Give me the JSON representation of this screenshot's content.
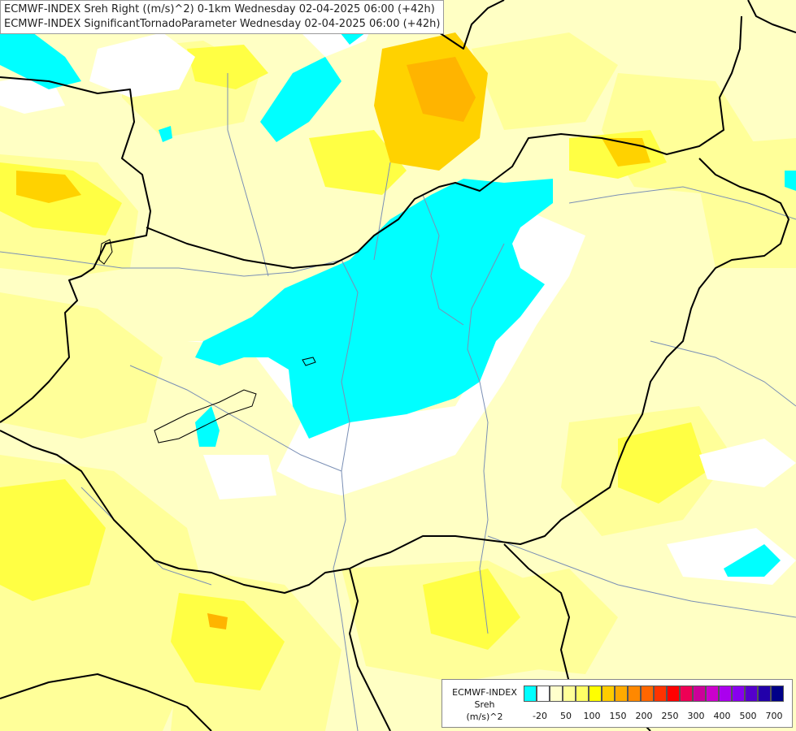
{
  "title": {
    "line1": "ECMWF-INDEX Sreh Right ((m/s)^2) 0-1km Wednesday 02-04-2025 06:00 (+42h)",
    "line2": "ECMWF-INDEX SignificantTornadoParameter Wednesday 02-04-2025 06:00 (+42h)"
  },
  "legend": {
    "name_line1": "ECMWF-INDEX",
    "name_line2": "Sreh",
    "unit": "(m/s)^2",
    "colors": [
      "#00ffff",
      "#ffffff",
      "#ffffcc",
      "#ffff99",
      "#ffff66",
      "#ffff00",
      "#ffcc00",
      "#ffaa00",
      "#ff8800",
      "#ff6600",
      "#ff3300",
      "#ff0000",
      "#ee0055",
      "#cc0099",
      "#cc00cc",
      "#aa00ee",
      "#8800ee",
      "#5500cc",
      "#2200aa",
      "#000088"
    ],
    "ticks": [
      "-20",
      "50",
      "100",
      "150",
      "200",
      "250",
      "300",
      "400",
      "500",
      "700"
    ]
  },
  "colors": {
    "cyan": "#00ffff",
    "white": "#ffffff",
    "pale": "#ffffc4",
    "light": "#ffff99",
    "yellow": "#ffff55",
    "gold": "#ffdd00",
    "orange": "#ffbb00",
    "border": "#000000",
    "river": "#7a8fb5"
  }
}
